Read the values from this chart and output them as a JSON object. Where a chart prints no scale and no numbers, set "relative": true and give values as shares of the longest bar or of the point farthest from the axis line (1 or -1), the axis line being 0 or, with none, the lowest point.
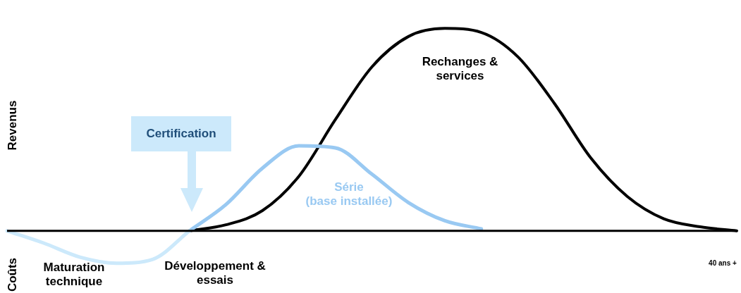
{
  "chart_data": {
    "type": "line",
    "relative": true,
    "ylabel": "Revenus",
    "categories": [
      null,
      null,
      null,
      null,
      null,
      null,
      null,
      null,
      null,
      null,
      null,
      null,
      null,
      null,
      null,
      null,
      null,
      null,
      null,
      null,
      null
    ],
    "series": [
      {
        "color": "#cce9fb",
        "values": [
          0,
          -0.06,
          -0.13,
          -0.16,
          -0.14,
          0,
          null,
          null,
          null,
          null,
          null,
          null,
          null,
          null,
          null,
          null,
          null,
          null,
          null,
          null,
          null
        ]
      },
      {
        "color": "#99c9f2",
        "values": [
          null,
          null,
          null,
          null,
          null,
          0,
          0.13,
          0.31,
          0.42,
          0.41,
          0.28,
          0.14,
          0.05,
          0.01,
          null,
          null,
          null,
          null,
          null,
          null,
          null
        ]
      },
      {
        "color": "#000000",
        "values": [
          null,
          null,
          null,
          null,
          null,
          0,
          0.03,
          0.1,
          0.27,
          0.55,
          0.81,
          0.96,
          1,
          0.98,
          0.86,
          0.63,
          0.36,
          0.17,
          0.06,
          0.02,
          0
        ]
      }
    ],
    "annotations": [
      "Coûts",
      "Maturation technique",
      "Développement & essais",
      "Certification",
      "Série (base installée)",
      "Rechanges & services",
      "40 ans +"
    ]
  }
}
